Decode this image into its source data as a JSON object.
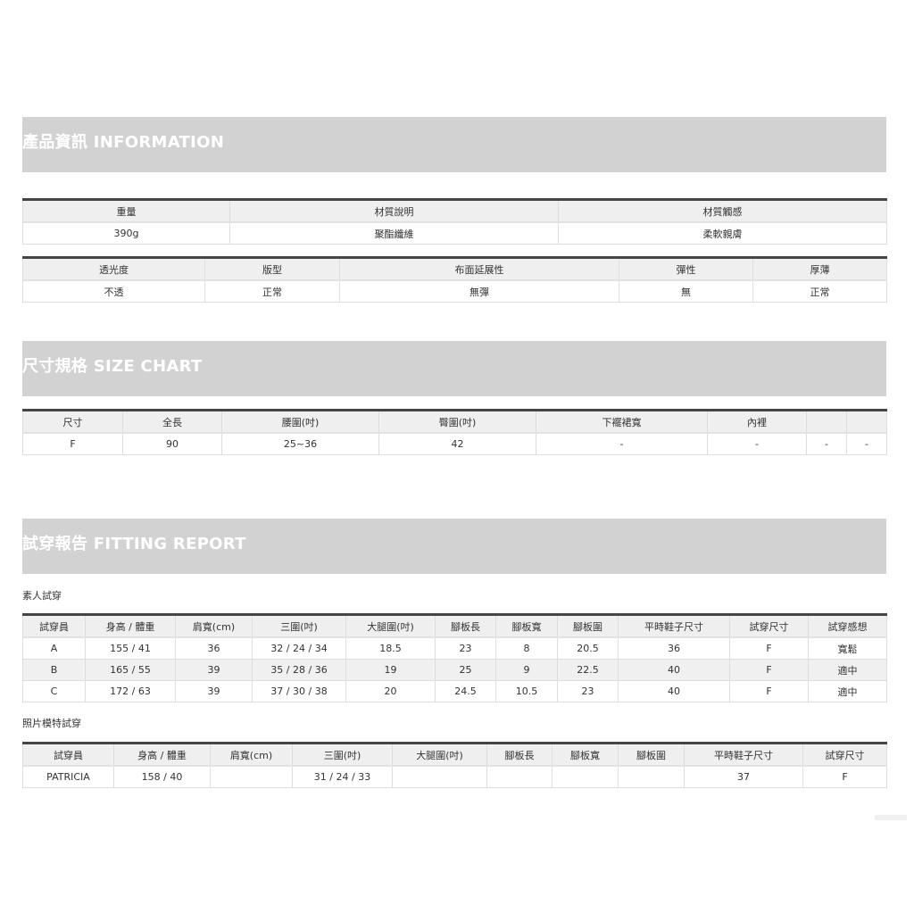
{
  "information": {
    "title": "產品資訊 INFORMATION",
    "table1": {
      "headers": [
        "重量",
        "材質說明",
        "材質觸感"
      ],
      "row": [
        "390g",
        "聚酯纖維",
        "柔軟親膚"
      ]
    },
    "table2": {
      "headers": [
        "透光度",
        "版型",
        "布面延展性",
        "彈性",
        "厚薄"
      ],
      "row": [
        "不透",
        "正常",
        "無彈",
        "無",
        "正常"
      ]
    }
  },
  "size_chart": {
    "title": "尺寸規格 SIZE CHART",
    "headers": [
      "尺寸",
      "全長",
      "腰圍(吋)",
      "臀圍(吋)",
      "下襬裙寬",
      "內裡",
      "",
      ""
    ],
    "row": [
      "F",
      "90",
      "25~36",
      "42",
      "-",
      "-",
      "-",
      "-"
    ]
  },
  "fitting_report": {
    "title": "試穿報告 FITTING REPORT",
    "amateur_label": "素人試穿",
    "amateur": {
      "headers": [
        "試穿員",
        "身高 / 體重",
        "肩寬(cm)",
        "三圍(吋)",
        "大腿圍(吋)",
        "腳板長",
        "腳板寬",
        "腳板圍",
        "平時鞋子尺寸",
        "試穿尺寸",
        "試穿感想"
      ],
      "rows": [
        [
          "A",
          "155 / 41",
          "36",
          "32 / 24 / 34",
          "18.5",
          "23",
          "8",
          "20.5",
          "36",
          "F",
          "寬鬆"
        ],
        [
          "B",
          "165 / 55",
          "39",
          "35 / 28 / 36",
          "19",
          "25",
          "9",
          "22.5",
          "40",
          "F",
          "適中"
        ],
        [
          "C",
          "172 / 63",
          "39",
          "37 / 30 / 38",
          "20",
          "24.5",
          "10.5",
          "23",
          "40",
          "F",
          "適中"
        ]
      ]
    },
    "model_label": "照片模特試穿",
    "model": {
      "headers": [
        "試穿員",
        "身高 / 體重",
        "肩寬(cm)",
        "三圍(吋)",
        "大腿圍(吋)",
        "腳板長",
        "腳板寬",
        "腳板圍",
        "平時鞋子尺寸",
        "試穿尺寸"
      ],
      "row": [
        "PATRICIA",
        "158 / 40",
        "",
        "31 / 24 / 33",
        "",
        "",
        "",
        "",
        "37",
        "F"
      ]
    }
  }
}
